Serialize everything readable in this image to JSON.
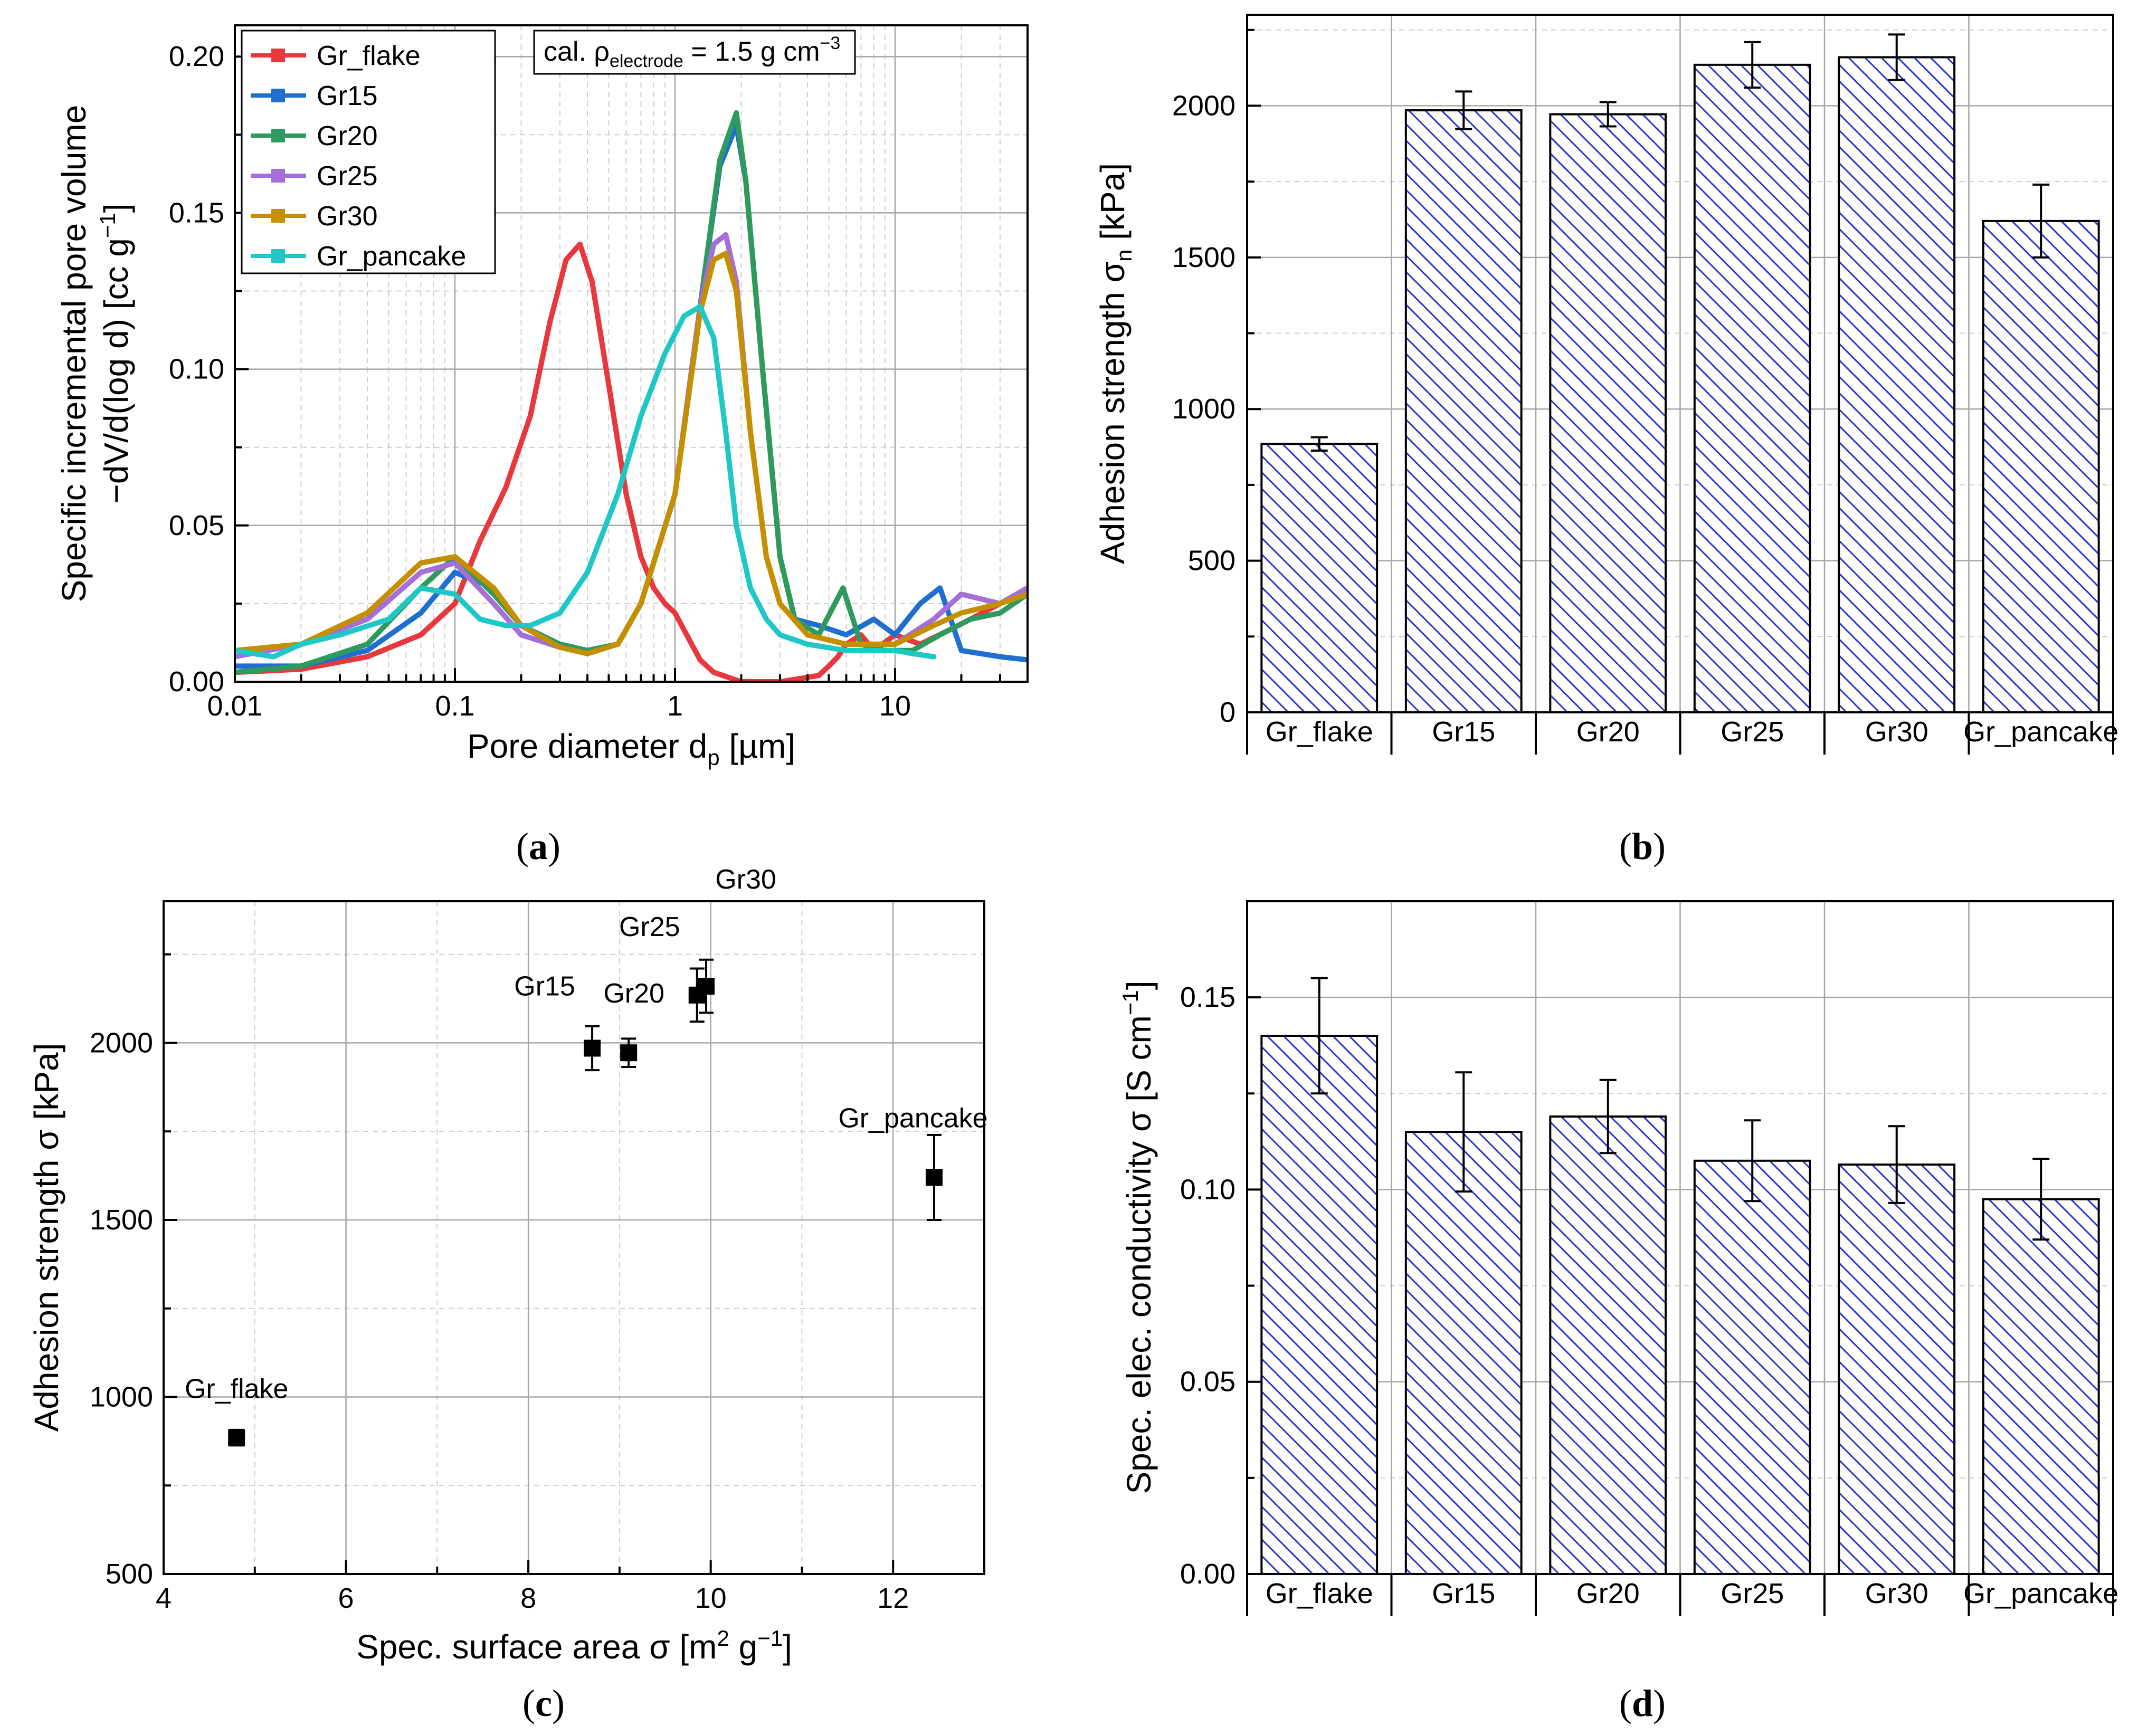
{
  "panel_labels": {
    "a": "a",
    "b": "b",
    "c": "c",
    "d": "d"
  },
  "chart_data": [
    {
      "id": "a",
      "type": "line",
      "xlabel": "Pore diameter d",
      "xlabel_sub": "p",
      "xlabel_unit": " [µm]",
      "ylabel_line1": "Specific incremental pore volume",
      "ylabel_line2": "−dV/d(log d) [cc g",
      "ylabel_sup": "−1",
      "ylabel_end": "]",
      "xscale": "log",
      "xlim": [
        0.01,
        40
      ],
      "ylim": [
        0,
        0.21
      ],
      "xticks": [
        0.01,
        0.1,
        1,
        10
      ],
      "xtick_labels": [
        "0.01",
        "0.1",
        "1",
        "10"
      ],
      "yticks": [
        0,
        0.05,
        0.1,
        0.15,
        0.2
      ],
      "ytick_labels": [
        "0.00",
        "0.05",
        "0.10",
        "0.15",
        "0.20"
      ],
      "annotation": {
        "prefix": "cal. ρ",
        "sub": "electrode",
        "mid": " = 1.5 g cm",
        "sup": "−3"
      },
      "legend_position": "top-left",
      "series": [
        {
          "name": "Gr_flake",
          "color": "#e8383d",
          "x": [
            0.01,
            0.02,
            0.04,
            0.07,
            0.1,
            0.13,
            0.17,
            0.22,
            0.27,
            0.32,
            0.37,
            0.42,
            0.5,
            0.6,
            0.7,
            0.8,
            0.9,
            1.0,
            1.15,
            1.3,
            1.5,
            2,
            3,
            4.5,
            5,
            5.5,
            6,
            7,
            8,
            10,
            13,
            17,
            22,
            30,
            40
          ],
          "y": [
            0.003,
            0.004,
            0.008,
            0.015,
            0.025,
            0.045,
            0.062,
            0.085,
            0.115,
            0.135,
            0.14,
            0.128,
            0.095,
            0.06,
            0.04,
            0.03,
            0.025,
            0.022,
            0.014,
            0.007,
            0.003,
            0.0,
            0.0,
            0.002,
            0.005,
            0.008,
            0.012,
            0.015,
            0.01,
            0.015,
            0.012,
            0.016,
            0.02,
            0.025,
            0.03
          ]
        },
        {
          "name": "Gr15",
          "color": "#1f6fd1",
          "x": [
            0.01,
            0.02,
            0.04,
            0.07,
            0.1,
            0.15,
            0.2,
            0.3,
            0.4,
            0.55,
            0.7,
            1.0,
            1.3,
            1.6,
            1.9,
            2.1,
            2.5,
            3,
            3.5,
            4.5,
            6,
            8,
            10,
            13,
            16,
            20,
            30,
            40
          ],
          "y": [
            0.005,
            0.005,
            0.01,
            0.022,
            0.035,
            0.03,
            0.018,
            0.012,
            0.01,
            0.012,
            0.025,
            0.06,
            0.12,
            0.165,
            0.178,
            0.16,
            0.1,
            0.04,
            0.02,
            0.018,
            0.015,
            0.02,
            0.015,
            0.025,
            0.03,
            0.01,
            0.008,
            0.007
          ]
        },
        {
          "name": "Gr20",
          "color": "#2e9a5e",
          "x": [
            0.01,
            0.02,
            0.04,
            0.07,
            0.1,
            0.15,
            0.2,
            0.3,
            0.4,
            0.55,
            0.7,
            1.0,
            1.3,
            1.6,
            1.9,
            2.1,
            2.5,
            3,
            3.5,
            4.5,
            5.8,
            7,
            9,
            12,
            16,
            22,
            30,
            40
          ],
          "y": [
            0.003,
            0.005,
            0.012,
            0.03,
            0.04,
            0.028,
            0.018,
            0.012,
            0.01,
            0.012,
            0.025,
            0.06,
            0.12,
            0.167,
            0.182,
            0.16,
            0.1,
            0.04,
            0.02,
            0.015,
            0.03,
            0.012,
            0.01,
            0.01,
            0.015,
            0.02,
            0.022,
            0.028
          ]
        },
        {
          "name": "Gr25",
          "color": "#a56fd8",
          "x": [
            0.01,
            0.02,
            0.04,
            0.07,
            0.1,
            0.15,
            0.2,
            0.3,
            0.4,
            0.55,
            0.7,
            1.0,
            1.3,
            1.5,
            1.7,
            1.9,
            2.2,
            2.6,
            3,
            4,
            6,
            8,
            10,
            15,
            20,
            30,
            40
          ],
          "y": [
            0.008,
            0.012,
            0.02,
            0.035,
            0.038,
            0.025,
            0.015,
            0.011,
            0.009,
            0.012,
            0.025,
            0.06,
            0.12,
            0.14,
            0.143,
            0.128,
            0.08,
            0.04,
            0.025,
            0.015,
            0.012,
            0.012,
            0.012,
            0.02,
            0.028,
            0.025,
            0.03
          ]
        },
        {
          "name": "Gr30",
          "color": "#c49000",
          "x": [
            0.01,
            0.02,
            0.04,
            0.07,
            0.1,
            0.15,
            0.2,
            0.3,
            0.4,
            0.55,
            0.7,
            1.0,
            1.3,
            1.5,
            1.7,
            1.9,
            2.2,
            2.6,
            3,
            4,
            6,
            8,
            10,
            15,
            20,
            30,
            40
          ],
          "y": [
            0.01,
            0.012,
            0.022,
            0.038,
            0.04,
            0.03,
            0.018,
            0.011,
            0.009,
            0.012,
            0.025,
            0.06,
            0.118,
            0.135,
            0.137,
            0.125,
            0.08,
            0.04,
            0.025,
            0.015,
            0.012,
            0.012,
            0.012,
            0.018,
            0.022,
            0.025,
            0.028
          ]
        },
        {
          "name": "Gr_pancake",
          "color": "#20c7c7",
          "x": [
            0.01,
            0.015,
            0.02,
            0.03,
            0.05,
            0.07,
            0.1,
            0.13,
            0.17,
            0.22,
            0.3,
            0.4,
            0.55,
            0.7,
            0.9,
            1.1,
            1.3,
            1.5,
            1.7,
            1.9,
            2.2,
            2.6,
            3,
            4,
            6,
            8,
            10,
            12,
            15
          ],
          "y": [
            0.01,
            0.008,
            0.012,
            0.015,
            0.02,
            0.03,
            0.028,
            0.02,
            0.018,
            0.018,
            0.022,
            0.035,
            0.06,
            0.085,
            0.105,
            0.117,
            0.12,
            0.11,
            0.08,
            0.05,
            0.03,
            0.02,
            0.015,
            0.012,
            0.01,
            0.01,
            0.01,
            0.009,
            0.008
          ]
        }
      ]
    },
    {
      "id": "b",
      "type": "bar",
      "ylabel": "Adhesion strength σ",
      "ylabel_sub": "n",
      "ylabel_unit": " [kPa]",
      "ylim": [
        0,
        2300
      ],
      "yticks": [
        0,
        500,
        1000,
        1500,
        2000
      ],
      "ytick_labels": [
        "0",
        "500",
        "1000",
        "1500",
        "2000"
      ],
      "categories": [
        "Gr_flake",
        "Gr15",
        "Gr20",
        "Gr25",
        "Gr30",
        "Gr_pancake"
      ],
      "values": [
        885,
        1985,
        1972,
        2135,
        2160,
        1620
      ],
      "errors": [
        22,
        62,
        40,
        75,
        75,
        120
      ]
    },
    {
      "id": "c",
      "type": "scatter",
      "xlabel": "Spec. surface area σ [m",
      "xlabel_sup": "2",
      "xlabel_end": " g",
      "xlabel_sup2": "−1",
      "xlabel_close": "]",
      "ylabel": "Adhesion strength σ [kPa]",
      "xlim": [
        4,
        13
      ],
      "ylim": [
        500,
        2400
      ],
      "xticks": [
        4,
        6,
        8,
        10,
        12
      ],
      "xtick_labels": [
        "4",
        "6",
        "8",
        "10",
        "12"
      ],
      "yticks": [
        500,
        1000,
        1500,
        2000
      ],
      "ytick_labels": [
        "500",
        "1000",
        "1500",
        "2000"
      ],
      "points": [
        {
          "label": "Gr_flake",
          "x": 4.8,
          "y": 885,
          "err": 22
        },
        {
          "label": "Gr15",
          "x": 8.7,
          "y": 1985,
          "err": 62
        },
        {
          "label": "Gr20",
          "x": 9.1,
          "y": 1972,
          "err": 40
        },
        {
          "label": "Gr25",
          "x": 9.85,
          "y": 2135,
          "err": 75
        },
        {
          "label": "Gr30",
          "x": 9.95,
          "y": 2160,
          "err": 75
        },
        {
          "label": "Gr_pancake",
          "x": 12.45,
          "y": 1620,
          "err": 120
        }
      ]
    },
    {
      "id": "d",
      "type": "bar",
      "ylabel": "Spec. elec. conductivity σ [S cm",
      "ylabel_sup": "−1",
      "ylabel_end": "]",
      "ylim": [
        0,
        0.175
      ],
      "yticks": [
        0,
        0.05,
        0.1,
        0.15
      ],
      "ytick_labels": [
        "0.00",
        "0.05",
        "0.10",
        "0.15"
      ],
      "categories": [
        "Gr_flake",
        "Gr15",
        "Gr20",
        "Gr25",
        "Gr30",
        "Gr_pancake"
      ],
      "values": [
        0.14,
        0.115,
        0.119,
        0.1075,
        0.1065,
        0.0975
      ],
      "errors": [
        0.015,
        0.0155,
        0.0095,
        0.0105,
        0.01,
        0.0105
      ]
    }
  ]
}
